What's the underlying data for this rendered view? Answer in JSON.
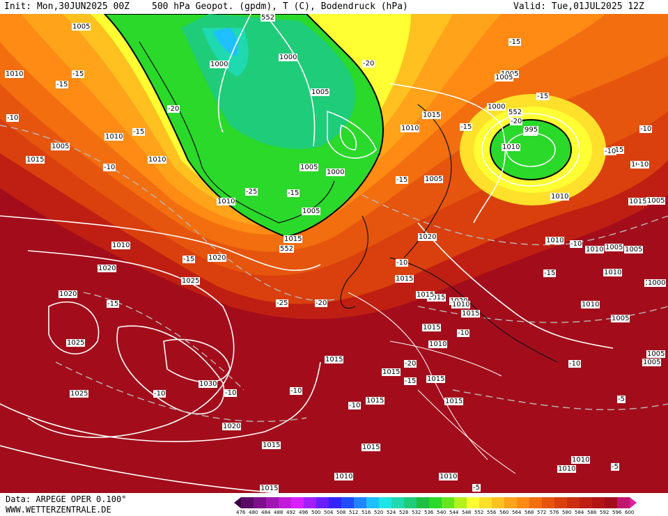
{
  "header": {
    "init": "Init: Mon,30JUN2025 00Z",
    "title": "500 hPa Geopot. (gpdm), T (C), Bodendruck (hPa)",
    "valid": "Valid: Tue,01JUL2025 12Z"
  },
  "footer": {
    "data_source": "Data: ARPEGE OPER 0.100°",
    "website": "WWW.WETTERZENTRALE.DE"
  },
  "legend": {
    "ticks": [
      "476",
      "480",
      "484",
      "488",
      "492",
      "496",
      "500",
      "504",
      "508",
      "512",
      "516",
      "520",
      "524",
      "528",
      "532",
      "536",
      "540",
      "544",
      "548",
      "552",
      "556",
      "560",
      "564",
      "568",
      "572",
      "576",
      "580",
      "584",
      "588",
      "592",
      "596",
      "600"
    ],
    "colors": [
      "#3b0040",
      "#5a0a66",
      "#7d0f8c",
      "#a016b3",
      "#c21ad9",
      "#d81fff",
      "#a31fff",
      "#6a1fff",
      "#3323ff",
      "#1f4dff",
      "#1f86ff",
      "#1fc0ff",
      "#1fe6e6",
      "#1fd9b0",
      "#1fcc7a",
      "#1fbf44",
      "#2ad92a",
      "#66e61f",
      "#b3f21f",
      "#ffff33",
      "#ffe02a",
      "#ffc11f",
      "#ffa31a",
      "#ff8a14",
      "#f26e0f",
      "#e6550d",
      "#d9400d",
      "#cc2e0f",
      "#bf1f12",
      "#b31414",
      "#a30d1b",
      "#c0166f",
      "#e01fa0"
    ]
  },
  "map": {
    "pressure_labels": [
      "1005",
      "1000",
      "1010",
      "1005",
      "1000",
      "1005",
      "1000",
      "1005",
      "1010",
      "1005",
      "1010",
      "1000",
      "1015",
      "1010",
      "1005",
      "1000",
      "1015",
      "1010",
      "1005",
      "1010",
      "1015",
      "1010",
      "1005",
      "1015",
      "1020",
      "1010",
      "1015",
      "1025",
      "1020",
      "1020",
      "1020",
      "1025",
      "1030",
      "1025",
      "1020",
      "1015",
      "1015",
      "1015",
      "1020",
      "1015",
      "1015",
      "1015",
      "1015",
      "1015",
      "1015",
      "1015",
      "1010",
      "1010",
      "1010",
      "1010",
      "1005",
      "1005",
      "1000",
      "1010",
      "1010",
      "1005",
      "1005",
      "1005",
      "1010",
      "1015",
      "995",
      "1010",
      "1005",
      "1000",
      "1015",
      "1010",
      "1010"
    ],
    "temperature_labels": [
      "-15",
      "-15",
      "-10",
      "-20",
      "-15",
      "-10",
      "-20",
      "-15",
      "-25",
      "-15",
      "-15",
      "-15",
      "-10",
      "-15",
      "-10",
      "-10",
      "-25",
      "-20",
      "-10",
      "-15",
      "-15",
      "-10",
      "-10",
      "-10",
      "-5",
      "-10",
      "-5",
      "-5",
      "-15",
      "-20",
      "-15",
      "-10",
      "-10",
      "-10",
      "-20",
      "-15"
    ],
    "height_contour_labels": [
      "552",
      "552",
      "552"
    ],
    "low_center_label": "995"
  }
}
